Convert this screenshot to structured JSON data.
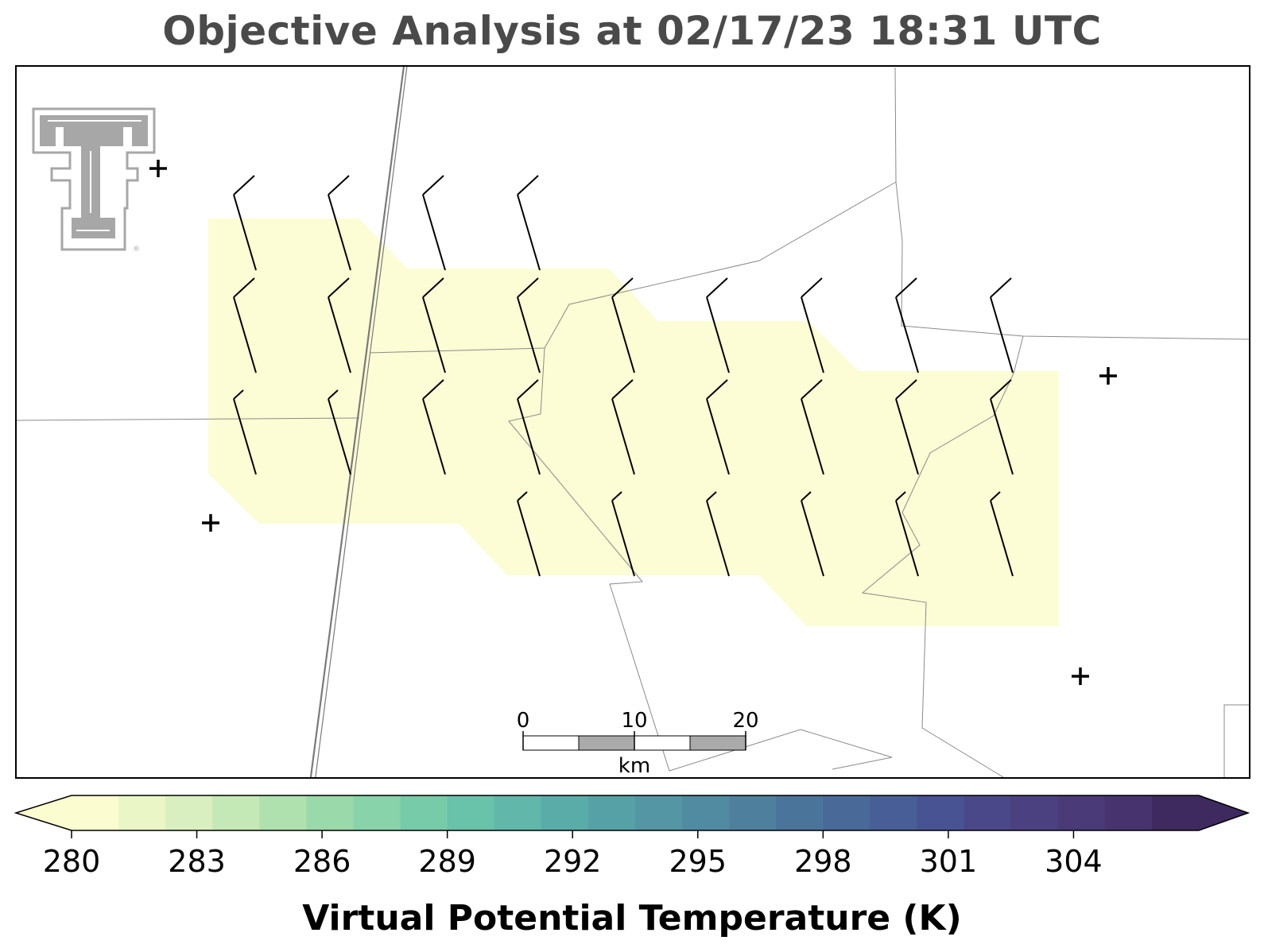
{
  "title": "Objective Analysis at 02/17/23 18:31 UTC",
  "map": {
    "colors": {
      "shade": "#fcfdd4",
      "boundary": "#8a8a8a",
      "highway": "#7a7a7a",
      "logo": "#a7a7a7",
      "barb": "#000000",
      "frame": "#000000"
    },
    "logo_icon": "double-t-logo-icon",
    "station_marker_icon": "plus-marker-icon",
    "barb_icon": "wind-barb-icon"
  },
  "scalebar": {
    "labels": [
      "0",
      "10",
      "20"
    ],
    "unit": "km"
  },
  "colorbar": {
    "label": "Virtual Potential Temperature (K)",
    "ticks": [
      "280",
      "283",
      "286",
      "289",
      "292",
      "295",
      "298",
      "301",
      "304"
    ],
    "min": 280,
    "max": 307,
    "step": 1,
    "extend": "both",
    "colors": [
      "#fbfdd0",
      "#eaf6c6",
      "#d9efbf",
      "#c4e8b6",
      "#afe1ae",
      "#9ad9a9",
      "#88d3a9",
      "#77cba9",
      "#69c2aa",
      "#60b7aa",
      "#5aaca9",
      "#56a1a6",
      "#5496a4",
      "#518ba1",
      "#4e809e",
      "#4b749b",
      "#496998",
      "#475e96",
      "#475393",
      "#4a4889",
      "#4b4080",
      "#4a3a77",
      "#47336d",
      "#3f2a5f"
    ],
    "extend_low_color": "#fbfdd0",
    "extend_high_color": "#3f2a5f"
  }
}
